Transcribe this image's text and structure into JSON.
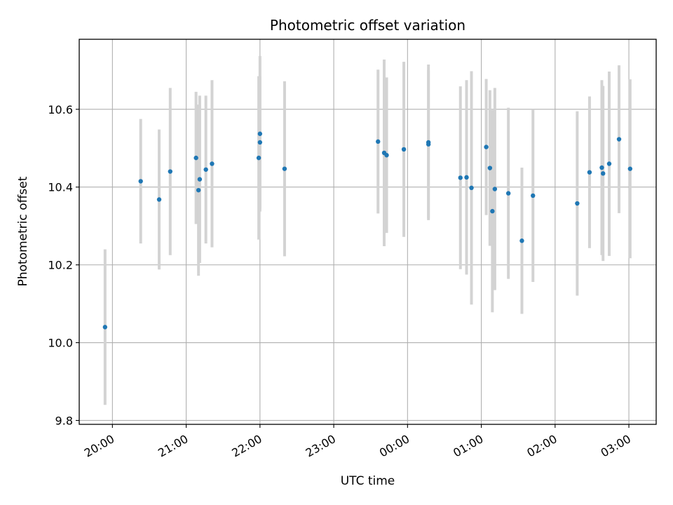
{
  "chart_data": {
    "type": "scatter",
    "title": "Photometric offset variation",
    "xlabel": "UTC time",
    "ylabel": "Photometric offset",
    "x_axis_type": "time",
    "x_ticks": [
      "20:00",
      "21:00",
      "22:00",
      "23:00",
      "00:00",
      "01:00",
      "02:00",
      "03:00"
    ],
    "x_tick_hours": [
      20,
      21,
      22,
      23,
      24,
      25,
      26,
      27
    ],
    "xlim_hours": [
      19.55,
      27.37
    ],
    "y_ticks": [
      9.8,
      10.0,
      10.2,
      10.4,
      10.6
    ],
    "ylim": [
      9.79,
      10.78
    ],
    "grid": true,
    "marker_color": "#1f77b4",
    "errorbar_color": "#d3d3d3",
    "points": [
      {
        "x": "19:54",
        "y": 10.04,
        "yerr": 0.2
      },
      {
        "x": "20:23",
        "y": 10.415,
        "yerr": 0.16
      },
      {
        "x": "20:38",
        "y": 10.368,
        "yerr": 0.18
      },
      {
        "x": "20:47",
        "y": 10.44,
        "yerr": 0.215
      },
      {
        "x": "21:08",
        "y": 10.475,
        "yerr": 0.17
      },
      {
        "x": "21:10",
        "y": 10.392,
        "yerr": 0.22
      },
      {
        "x": "21:11",
        "y": 10.42,
        "yerr": 0.215
      },
      {
        "x": "21:16",
        "y": 10.445,
        "yerr": 0.19
      },
      {
        "x": "21:21",
        "y": 10.46,
        "yerr": 0.215
      },
      {
        "x": "21:59",
        "y": 10.475,
        "yerr": 0.21
      },
      {
        "x": "22:00",
        "y": 10.515,
        "yerr": 0.17
      },
      {
        "x": "22:00",
        "y": 10.537,
        "yerr": 0.2
      },
      {
        "x": "22:20",
        "y": 10.447,
        "yerr": 0.225
      },
      {
        "x": "23:36",
        "y": 10.517,
        "yerr": 0.185
      },
      {
        "x": "23:41",
        "y": 10.488,
        "yerr": 0.24
      },
      {
        "x": "23:43",
        "y": 10.482,
        "yerr": 0.2
      },
      {
        "x": "23:57",
        "y": 10.497,
        "yerr": 0.225
      },
      {
        "x": "00:17",
        "y": 10.515,
        "yerr": 0.2
      },
      {
        "x": "00:17",
        "y": 10.51,
        "yerr": 0.19
      },
      {
        "x": "00:43",
        "y": 10.424,
        "yerr": 0.235
      },
      {
        "x": "00:48",
        "y": 10.425,
        "yerr": 0.25
      },
      {
        "x": "00:52",
        "y": 10.398,
        "yerr": 0.3
      },
      {
        "x": "01:04",
        "y": 10.503,
        "yerr": 0.175
      },
      {
        "x": "01:07",
        "y": 10.449,
        "yerr": 0.2
      },
      {
        "x": "01:09",
        "y": 10.338,
        "yerr": 0.26
      },
      {
        "x": "01:11",
        "y": 10.395,
        "yerr": 0.26
      },
      {
        "x": "01:22",
        "y": 10.384,
        "yerr": 0.22
      },
      {
        "x": "01:33",
        "y": 10.262,
        "yerr": 0.188
      },
      {
        "x": "01:42",
        "y": 10.378,
        "yerr": 0.222
      },
      {
        "x": "02:18",
        "y": 10.358,
        "yerr": 0.237
      },
      {
        "x": "02:28",
        "y": 10.438,
        "yerr": 0.195
      },
      {
        "x": "02:38",
        "y": 10.45,
        "yerr": 0.225
      },
      {
        "x": "02:39",
        "y": 10.435,
        "yerr": 0.225
      },
      {
        "x": "02:44",
        "y": 10.46,
        "yerr": 0.237
      },
      {
        "x": "02:52",
        "y": 10.523,
        "yerr": 0.19
      },
      {
        "x": "03:01",
        "y": 10.447,
        "yerr": 0.23
      }
    ]
  }
}
